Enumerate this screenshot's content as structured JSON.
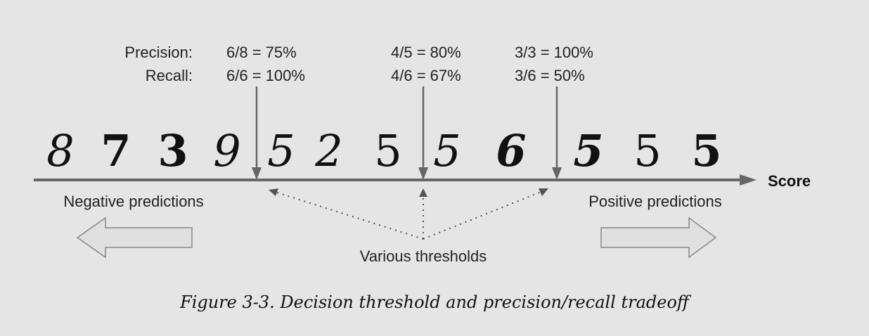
{
  "labels": {
    "precision": "Precision:",
    "recall": "Recall:",
    "score": "Score",
    "negative": "Negative predictions",
    "positive": "Positive predictions",
    "thresholds": "Various thresholds"
  },
  "thresholds": [
    {
      "precision": "6/8 = 75%",
      "recall": "6/6 = 100%"
    },
    {
      "precision": "4/5 = 80%",
      "recall": "4/6 = 67%"
    },
    {
      "precision": "3/3 = 100%",
      "recall": "3/6 = 50%"
    }
  ],
  "digits": [
    "8",
    "7",
    "3",
    "9",
    "5",
    "2",
    "5",
    "5",
    "6",
    "5",
    "5",
    "5"
  ],
  "caption": "Figure 3-3. Decision threshold and precision/recall tradeoff",
  "colors": {
    "axis": "#666666",
    "background": "#e5e5e5",
    "arrow_fill": "#e0e0e0"
  }
}
